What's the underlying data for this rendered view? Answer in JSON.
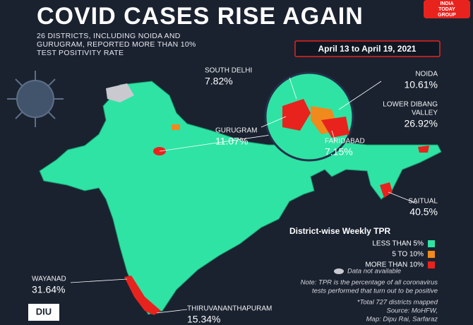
{
  "header": {
    "title": "COVID CASES RISE AGAIN",
    "subtitle_lines": [
      "26 DISTRICTS, INCLUDING NOIDA AND",
      "GURUGRAM, REPORTED MORE THAN 10%",
      "TEST POSITIVITY RATE"
    ],
    "date": "April 13 to April 19, 2021",
    "brand_lines": [
      "INDIA",
      "TODAY",
      "GROUP"
    ]
  },
  "districts": [
    {
      "name_lines": [
        "SOUTH DELHI"
      ],
      "tpr": "7.82%"
    },
    {
      "name_lines": [
        "NOIDA"
      ],
      "tpr": "10.61%"
    },
    {
      "name_lines": [
        "LOWER DIBANG",
        "VALLEY"
      ],
      "tpr": "26.92%"
    },
    {
      "name_lines": [
        "GURUGRAM"
      ],
      "tpr": "11.07%"
    },
    {
      "name_lines": [
        "FARIDABAD"
      ],
      "tpr": "7.15%"
    },
    {
      "name_lines": [
        "SAITUAL"
      ],
      "tpr": "40.5%"
    },
    {
      "name_lines": [
        "WAYANAD"
      ],
      "tpr": "31.64%"
    },
    {
      "name_lines": [
        "THIRUVANANTHAPURAM"
      ],
      "tpr": "15.34%"
    }
  ],
  "legend": {
    "title": "District-wise Weekly TPR",
    "items": [
      {
        "label": "LESS THAN 5%",
        "color": "#2fe3a4"
      },
      {
        "label": "5 TO 10%",
        "color": "#f08a1c"
      },
      {
        "label": "MORE THAN 10%",
        "color": "#e8231e"
      }
    ],
    "na_label": "Data not available",
    "na_color": "#c9c9cf"
  },
  "notes": {
    "tpr_lines": [
      "Note: TPR is the percentage of all coronavirus",
      "tests performed that turn out to be positive"
    ],
    "source_lines": [
      "*Total 727 districts mapped",
      "Source: MoHFW,",
      "Map: Dipu Rai, Sarfaraz"
    ]
  },
  "logo": "DIU"
}
